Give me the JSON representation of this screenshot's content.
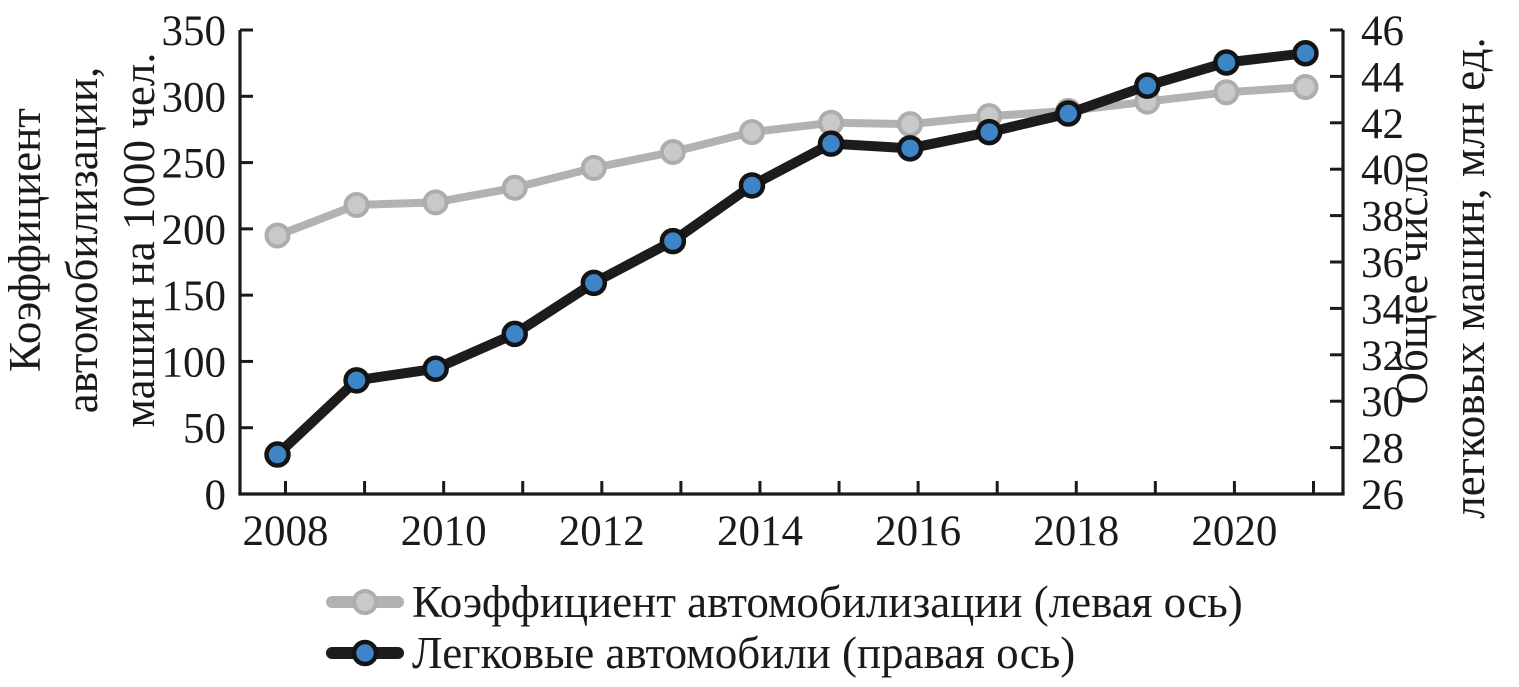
{
  "figure": {
    "background": "#ffffff"
  },
  "chart_data": {
    "type": "line",
    "title": "",
    "categories": [
      2008,
      2009,
      2010,
      2011,
      2012,
      2013,
      2014,
      2015,
      2016,
      2017,
      2018,
      2019,
      2020,
      2021
    ],
    "x_axis": {
      "tick_labels": [
        "2008",
        "2010",
        "2012",
        "2014",
        "2016",
        "2018",
        "2020"
      ],
      "label_every": 2
    },
    "left_axis": {
      "title_lines": [
        "Коэффициент",
        "автомобилизации,",
        "машин на 1000 чел."
      ],
      "min": 0,
      "max": 350,
      "tick_step": 50,
      "tick_labels": [
        "0",
        "50",
        "100",
        "150",
        "200",
        "250",
        "300",
        "350"
      ]
    },
    "right_axis": {
      "title_lines": [
        "Общее число",
        "легковых машин, млн ед."
      ],
      "min": 26,
      "max": 46,
      "tick_step": 2,
      "tick_labels": [
        "26",
        "28",
        "30",
        "32",
        "34",
        "36",
        "38",
        "40",
        "42",
        "44",
        "46"
      ]
    },
    "series": [
      {
        "name": "Коэффициент автомобилизации (левая ось)",
        "axis": "left",
        "line_color": "#b2b2b2",
        "marker_fill": "#c9c9c9",
        "marker_stroke": "#adadad",
        "values": [
          195,
          218,
          220,
          231,
          246,
          258,
          273,
          280,
          279,
          285,
          289,
          296,
          303,
          307
        ]
      },
      {
        "name": "Легковые автомобили (правая ось)",
        "axis": "right",
        "line_color": "#1c1c1c",
        "marker_fill": "#3d85c6",
        "marker_stroke": "#141414",
        "values": [
          27.7,
          30.9,
          31.4,
          32.9,
          35.1,
          36.9,
          39.3,
          41.1,
          40.9,
          41.6,
          42.4,
          43.6,
          44.6,
          45.0
        ]
      }
    ],
    "legend": {
      "position": "bottom-left"
    },
    "grid": false
  }
}
